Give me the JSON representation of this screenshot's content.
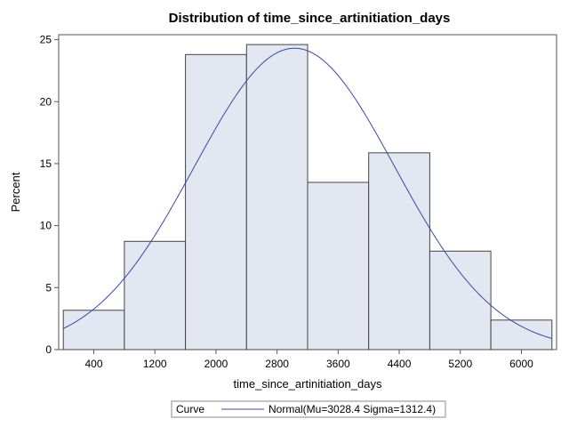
{
  "chart_data": {
    "type": "bar",
    "title": "Distribution of time_since_artinitiation_days",
    "xlabel": "time_since_artinitiation_days",
    "ylabel": "Percent",
    "bins": [
      {
        "start": 0,
        "end": 800,
        "value": 3.17
      },
      {
        "start": 800,
        "end": 1600,
        "value": 8.73
      },
      {
        "start": 1600,
        "end": 2400,
        "value": 23.8
      },
      {
        "start": 2400,
        "end": 3200,
        "value": 24.6
      },
      {
        "start": 3200,
        "end": 4000,
        "value": 13.49
      },
      {
        "start": 4000,
        "end": 4800,
        "value": 15.87
      },
      {
        "start": 4800,
        "end": 5600,
        "value": 7.94
      },
      {
        "start": 5600,
        "end": 6400,
        "value": 2.38
      }
    ],
    "x_ticks": [
      400,
      1200,
      2000,
      2800,
      3600,
      4400,
      5200,
      6000
    ],
    "y_ticks": [
      0,
      5,
      10,
      15,
      20,
      25
    ],
    "xlim": [
      -60,
      6460
    ],
    "ylim": [
      0,
      25.4
    ],
    "curve": {
      "type": "normal",
      "mu": 3028.4,
      "sigma": 1312.4,
      "peak_percent": 24.31
    },
    "legend": {
      "title": "Curve",
      "entry": "Normal(Mu=3028.4 Sigma=1312.4)",
      "position": "bottom-center"
    },
    "grid": false
  },
  "colors": {
    "bar_fill": "#e3e7f1",
    "bar_stroke": "#444444",
    "curve": "#3a4aa0",
    "axis": "#555555"
  }
}
